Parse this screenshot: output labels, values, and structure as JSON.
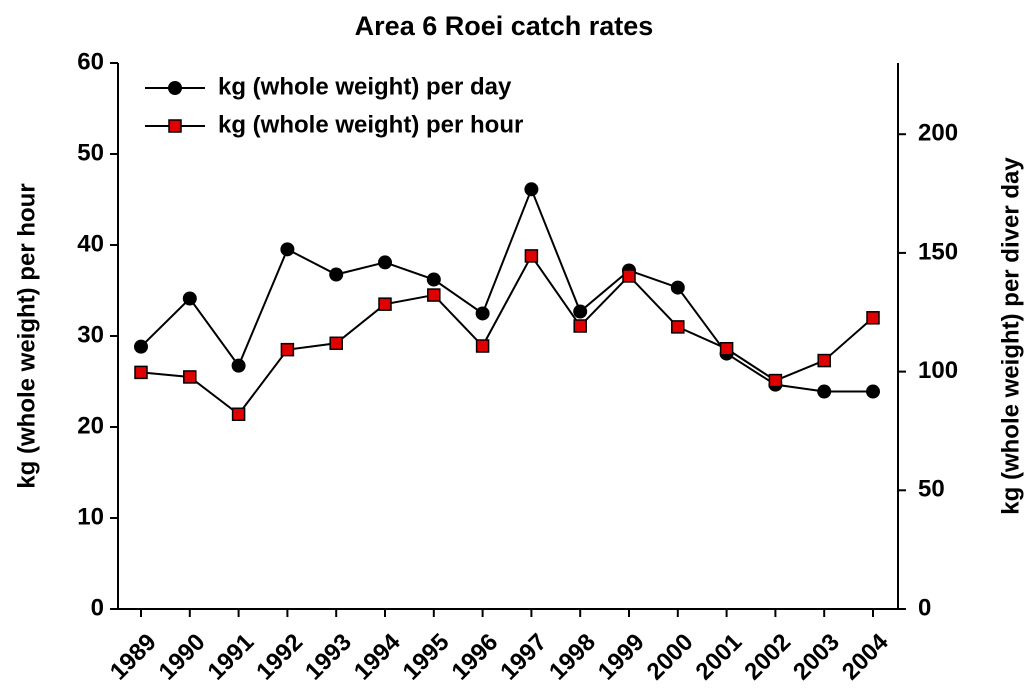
{
  "chart_data": {
    "type": "line",
    "title": "Area 6 Roei catch rates",
    "categories": [
      "1989",
      "1990",
      "1991",
      "1992",
      "1993",
      "1994",
      "1995",
      "1996",
      "1997",
      "1998",
      "1999",
      "2000",
      "2001",
      "2002",
      "2003",
      "2004"
    ],
    "series": [
      {
        "name": "kg (whole weight) per day",
        "color": "#000000",
        "marker": "circle",
        "axis": "y2",
        "values": [
          110.5,
          130.8,
          102.5,
          151.5,
          140.9,
          146,
          138.8,
          124.5,
          176.8,
          125.3,
          142.6,
          135.4,
          107.6,
          94.5,
          91.6,
          91.6
        ]
      },
      {
        "name": "kg (whole weight) per hour",
        "color": "#e00000",
        "marker": "square",
        "values": [
          26.0,
          25.5,
          21.4,
          28.5,
          29.2,
          33.5,
          34.5,
          28.9,
          38.8,
          31.1,
          36.6,
          31.0,
          28.6,
          25.1,
          27.3,
          32.0
        ]
      }
    ],
    "ylabel": "kg (whole weight) per hour",
    "y2label": "kg (whole weight) per diver day",
    "ylim": [
      0,
      60
    ],
    "yticks": [
      0,
      10,
      20,
      30,
      40,
      50,
      60
    ],
    "y2lim": [
      0,
      230
    ],
    "y2ticks": [
      0,
      50,
      100,
      150,
      200
    ],
    "legend": "upper left"
  }
}
